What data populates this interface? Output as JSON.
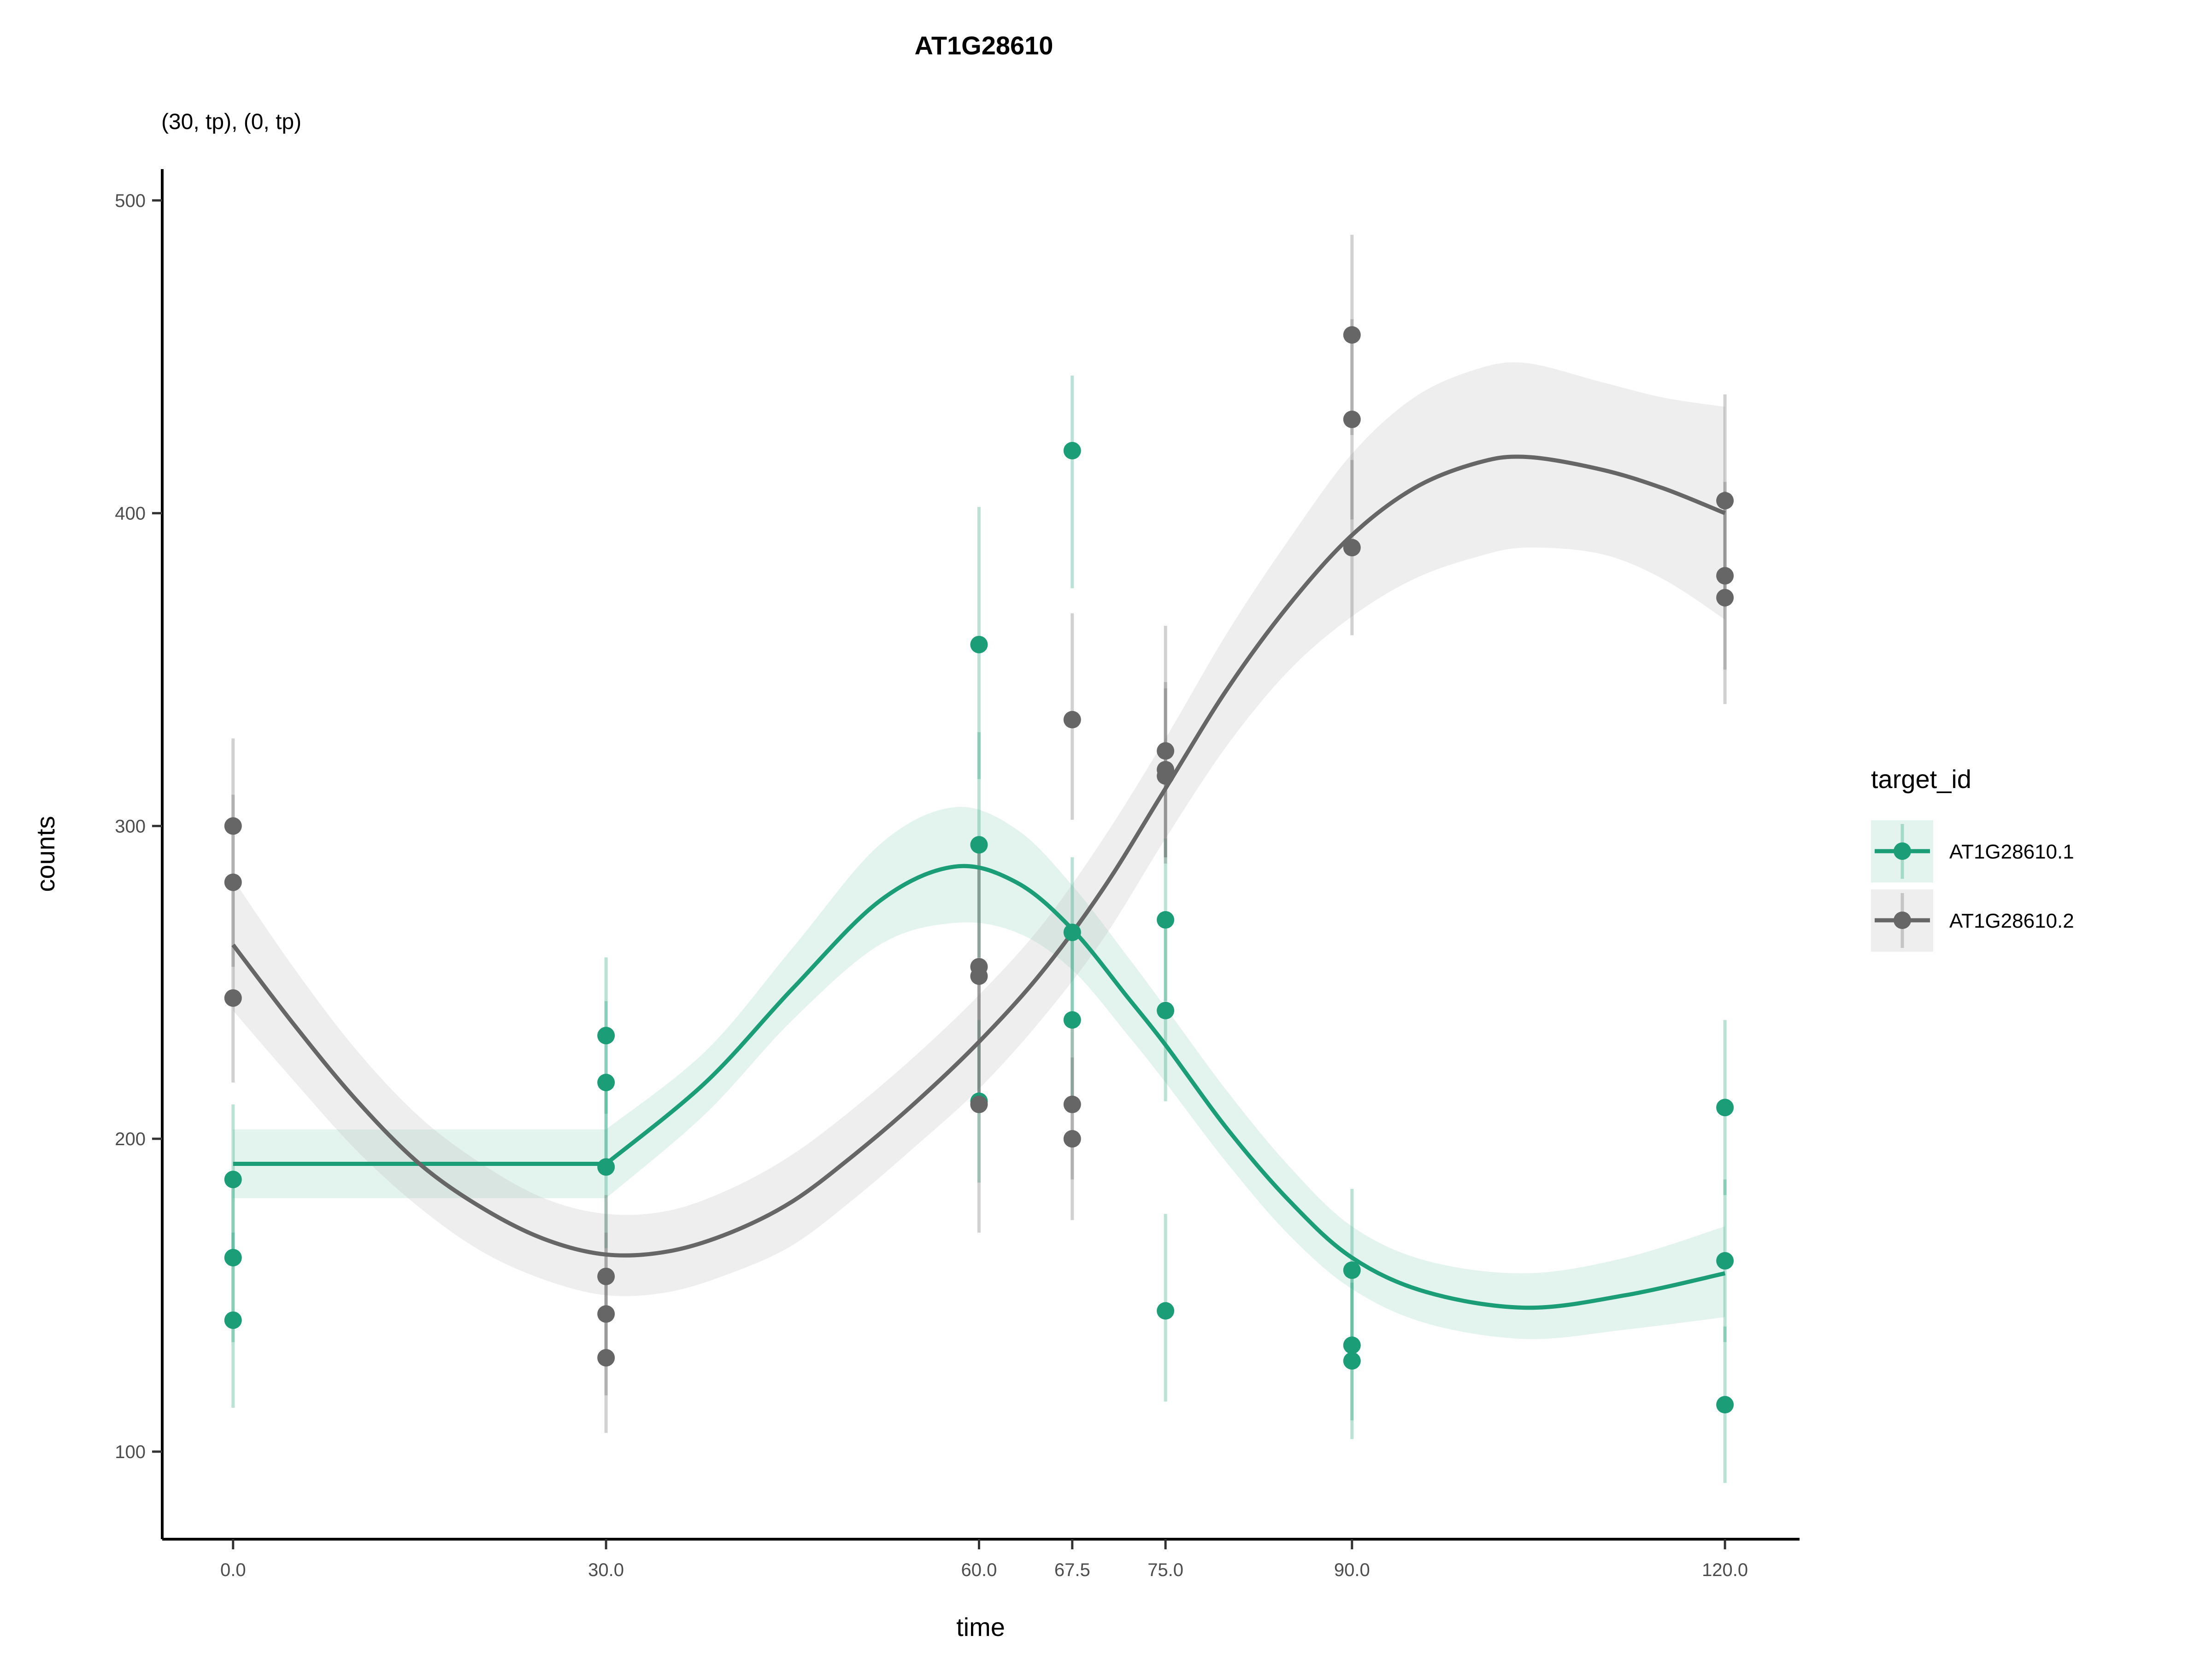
{
  "chart_data": {
    "type": "scatter",
    "title": "AT1G28610",
    "subtitle": "(30, tp), (0, tp)",
    "xlabel": "time",
    "ylabel": "counts",
    "x_ticks": [
      0,
      30,
      60,
      67.5,
      75,
      90,
      120
    ],
    "x_tick_labels": [
      "0.0",
      "30.0",
      "60.0",
      "67.5",
      "75.0",
      "90.0",
      "120.0"
    ],
    "y_ticks": [
      100,
      200,
      300,
      400,
      500
    ],
    "y_tick_labels": [
      "100",
      "200",
      "300",
      "400",
      "500"
    ],
    "xlim": [
      -5.7,
      126
    ],
    "ylim": [
      72,
      510
    ],
    "grid": false,
    "legend_position": "right",
    "legend_title": "target_id",
    "series": [
      {
        "name": "AT1G28610.1",
        "color": "#1b9e77",
        "points": [
          {
            "x": 0,
            "y": 187,
            "lo": 163,
            "hi": 211
          },
          {
            "x": 0,
            "y": 162,
            "lo": 135,
            "hi": 189
          },
          {
            "x": 0,
            "y": 142,
            "lo": 114,
            "hi": 170
          },
          {
            "x": 30,
            "y": 233,
            "lo": 208,
            "hi": 258
          },
          {
            "x": 30,
            "y": 218,
            "lo": 192,
            "hi": 244
          },
          {
            "x": 30,
            "y": 191,
            "lo": 165,
            "hi": 217
          },
          {
            "x": 60,
            "y": 358,
            "lo": 315,
            "hi": 402
          },
          {
            "x": 60,
            "y": 294,
            "lo": 258,
            "hi": 330
          },
          {
            "x": 60,
            "y": 212,
            "lo": 186,
            "hi": 238
          },
          {
            "x": 67.5,
            "y": 420,
            "lo": 376,
            "hi": 444
          },
          {
            "x": 67.5,
            "y": 266,
            "lo": 240,
            "hi": 290
          },
          {
            "x": 67.5,
            "y": 238,
            "lo": 212,
            "hi": 264
          },
          {
            "x": 75,
            "y": 270,
            "lo": 244,
            "hi": 296
          },
          {
            "x": 75,
            "y": 241,
            "lo": 212,
            "hi": 270
          },
          {
            "x": 75,
            "y": 145,
            "lo": 116,
            "hi": 176
          },
          {
            "x": 90,
            "y": 158,
            "lo": 133,
            "hi": 184
          },
          {
            "x": 90,
            "y": 134,
            "lo": 110,
            "hi": 158
          },
          {
            "x": 90,
            "y": 129,
            "lo": 104,
            "hi": 154
          },
          {
            "x": 120,
            "y": 210,
            "lo": 182,
            "hi": 238
          },
          {
            "x": 120,
            "y": 161,
            "lo": 135,
            "hi": 187
          },
          {
            "x": 120,
            "y": 115,
            "lo": 90,
            "hi": 140
          }
        ],
        "fit": [
          {
            "x": 0,
            "y": 192,
            "lo": 181,
            "hi": 203
          },
          {
            "x": 30,
            "y": 192,
            "lo": 181,
            "hi": 203
          },
          {
            "x": 38,
            "y": 218,
            "lo": 208,
            "hi": 228
          },
          {
            "x": 45,
            "y": 248,
            "lo": 238,
            "hi": 261
          },
          {
            "x": 52,
            "y": 276,
            "lo": 262,
            "hi": 294
          },
          {
            "x": 58,
            "y": 287,
            "lo": 269,
            "hi": 306
          },
          {
            "x": 63,
            "y": 282,
            "lo": 266,
            "hi": 299
          },
          {
            "x": 67.5,
            "y": 267,
            "lo": 254,
            "hi": 281
          },
          {
            "x": 72,
            "y": 245,
            "lo": 233,
            "hi": 258
          },
          {
            "x": 75,
            "y": 230,
            "lo": 218,
            "hi": 242
          },
          {
            "x": 80,
            "y": 203,
            "lo": 192,
            "hi": 215
          },
          {
            "x": 85,
            "y": 180,
            "lo": 169,
            "hi": 191
          },
          {
            "x": 90,
            "y": 162,
            "lo": 152,
            "hi": 172
          },
          {
            "x": 96,
            "y": 151,
            "lo": 141,
            "hi": 161
          },
          {
            "x": 104,
            "y": 146,
            "lo": 136,
            "hi": 157
          },
          {
            "x": 112,
            "y": 150,
            "lo": 139,
            "hi": 162
          },
          {
            "x": 120,
            "y": 157,
            "lo": 143,
            "hi": 172
          }
        ]
      },
      {
        "name": "AT1G28610.2",
        "color": "#666666",
        "points": [
          {
            "x": 0,
            "y": 300,
            "lo": 272,
            "hi": 328
          },
          {
            "x": 0,
            "y": 282,
            "lo": 255,
            "hi": 310
          },
          {
            "x": 0,
            "y": 245,
            "lo": 218,
            "hi": 272
          },
          {
            "x": 30,
            "y": 156,
            "lo": 130,
            "hi": 182
          },
          {
            "x": 30,
            "y": 144,
            "lo": 118,
            "hi": 170
          },
          {
            "x": 30,
            "y": 130,
            "lo": 106,
            "hi": 154
          },
          {
            "x": 60,
            "y": 255,
            "lo": 214,
            "hi": 296
          },
          {
            "x": 60,
            "y": 252,
            "lo": 212,
            "hi": 292
          },
          {
            "x": 60,
            "y": 211,
            "lo": 170,
            "hi": 252
          },
          {
            "x": 67.5,
            "y": 334,
            "lo": 302,
            "hi": 368
          },
          {
            "x": 67.5,
            "y": 211,
            "lo": 187,
            "hi": 236
          },
          {
            "x": 67.5,
            "y": 200,
            "lo": 174,
            "hi": 226
          },
          {
            "x": 75,
            "y": 324,
            "lo": 290,
            "hi": 364
          },
          {
            "x": 75,
            "y": 318,
            "lo": 290,
            "hi": 346
          },
          {
            "x": 75,
            "y": 316,
            "lo": 288,
            "hi": 344
          },
          {
            "x": 90,
            "y": 457,
            "lo": 425,
            "hi": 489
          },
          {
            "x": 90,
            "y": 430,
            "lo": 398,
            "hi": 462
          },
          {
            "x": 90,
            "y": 389,
            "lo": 361,
            "hi": 417
          },
          {
            "x": 120,
            "y": 404,
            "lo": 370,
            "hi": 438
          },
          {
            "x": 120,
            "y": 380,
            "lo": 350,
            "hi": 410
          },
          {
            "x": 120,
            "y": 373,
            "lo": 339,
            "hi": 407
          }
        ],
        "fit": [
          {
            "x": 0,
            "y": 262,
            "lo": 241,
            "hi": 283
          },
          {
            "x": 5,
            "y": 236,
            "lo": 218,
            "hi": 254
          },
          {
            "x": 10,
            "y": 212,
            "lo": 196,
            "hi": 228
          },
          {
            "x": 15,
            "y": 192,
            "lo": 178,
            "hi": 207
          },
          {
            "x": 20,
            "y": 178,
            "lo": 164,
            "hi": 192
          },
          {
            "x": 25,
            "y": 168,
            "lo": 155,
            "hi": 181
          },
          {
            "x": 30,
            "y": 163,
            "lo": 150,
            "hi": 176
          },
          {
            "x": 35,
            "y": 164,
            "lo": 151,
            "hi": 177
          },
          {
            "x": 40,
            "y": 170,
            "lo": 157,
            "hi": 184
          },
          {
            "x": 45,
            "y": 180,
            "lo": 166,
            "hi": 195
          },
          {
            "x": 50,
            "y": 195,
            "lo": 181,
            "hi": 210
          },
          {
            "x": 55,
            "y": 212,
            "lo": 198,
            "hi": 227
          },
          {
            "x": 60,
            "y": 231,
            "lo": 216,
            "hi": 246
          },
          {
            "x": 65,
            "y": 253,
            "lo": 238,
            "hi": 268
          },
          {
            "x": 70,
            "y": 280,
            "lo": 264,
            "hi": 296
          },
          {
            "x": 75,
            "y": 312,
            "lo": 296,
            "hi": 328
          },
          {
            "x": 80,
            "y": 344,
            "lo": 326,
            "hi": 362
          },
          {
            "x": 85,
            "y": 371,
            "lo": 350,
            "hi": 392
          },
          {
            "x": 90,
            "y": 393,
            "lo": 367,
            "hi": 419
          },
          {
            "x": 95,
            "y": 408,
            "lo": 379,
            "hi": 437
          },
          {
            "x": 100,
            "y": 416,
            "lo": 386,
            "hi": 446
          },
          {
            "x": 104,
            "y": 418,
            "lo": 389,
            "hi": 448
          },
          {
            "x": 110,
            "y": 414,
            "lo": 387,
            "hi": 442
          },
          {
            "x": 115,
            "y": 408,
            "lo": 379,
            "hi": 437
          },
          {
            "x": 120,
            "y": 400,
            "lo": 366,
            "hi": 434
          }
        ]
      }
    ]
  }
}
